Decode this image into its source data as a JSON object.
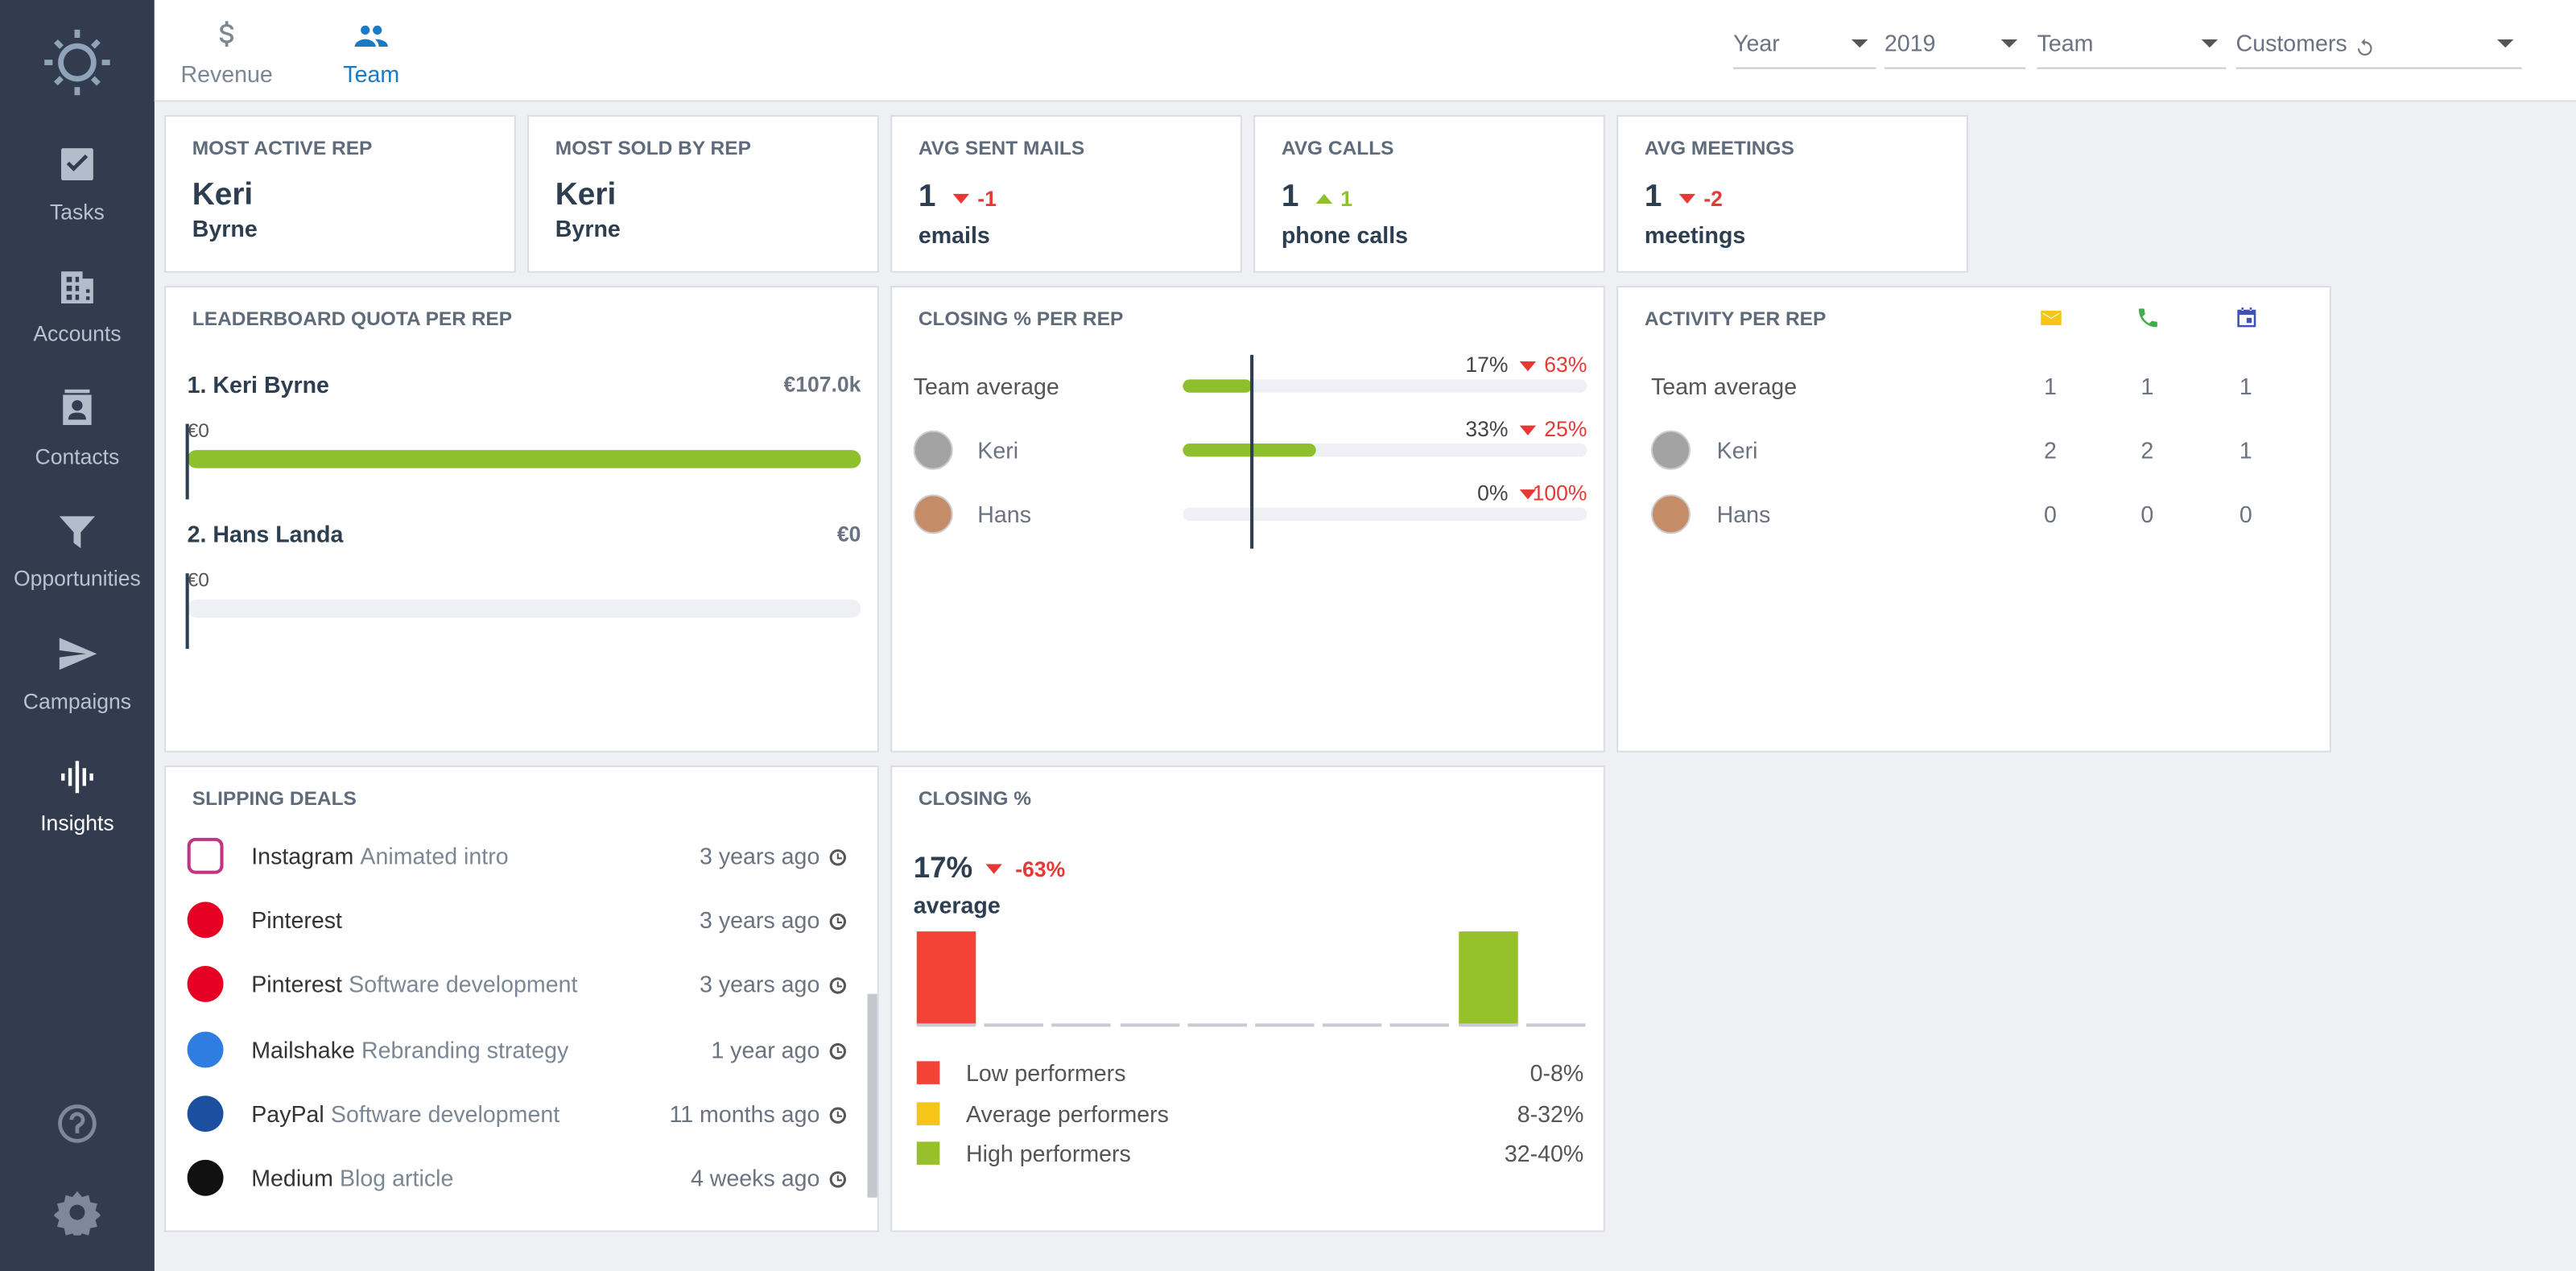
{
  "nav": {
    "items": [
      "Tasks",
      "Accounts",
      "Contacts",
      "Opportunities",
      "Campaigns",
      "Insights"
    ],
    "active": 5
  },
  "tabs": {
    "items": [
      "Revenue",
      "Team"
    ],
    "active": 1
  },
  "filters": [
    "Year",
    "2019",
    "Team",
    "Customers"
  ],
  "kpis": [
    {
      "title": "MOST ACTIVE REP",
      "name": "Keri",
      "sub": "Byrne"
    },
    {
      "title": "MOST SOLD BY REP",
      "name": "Keri",
      "sub": "Byrne"
    },
    {
      "title": "AVG SENT MAILS",
      "value": "1",
      "delta": "-1",
      "direction": "down",
      "unit": "emails"
    },
    {
      "title": "AVG CALLS",
      "value": "1",
      "delta": "1",
      "direction": "up",
      "unit": "phone calls"
    },
    {
      "title": "AVG MEETINGS",
      "value": "1",
      "delta": "-2",
      "direction": "down",
      "unit": "meetings"
    }
  ],
  "leaderboard": {
    "title": "LEADERBOARD QUOTA PER REP",
    "color": "#8dc02c",
    "rows": [
      {
        "name": "1. Keri Byrne",
        "amount": {
          "value": 107000,
          "label": "€107.0k"
        },
        "base": "€0"
      },
      {
        "name": "2. Hans Landa",
        "amount": {
          "value": 0,
          "label": "€0"
        },
        "base": "€0"
      }
    ]
  },
  "closing_per_rep": {
    "title": "CLOSING % PER REP",
    "color": "#8dc02c",
    "rows": [
      {
        "name": "Team average",
        "pct": {
          "value": 17,
          "label": "17%"
        },
        "delta": "63%",
        "direction": "down"
      },
      {
        "name": "Keri",
        "pct": {
          "value": 33,
          "label": "33%"
        },
        "delta": "25%",
        "direction": "down"
      },
      {
        "name": "Hans",
        "pct": {
          "value": 0,
          "label": "0%"
        },
        "delta": "100%",
        "direction": "down"
      }
    ]
  },
  "activity": {
    "title": "ACTIVITY PER REP",
    "rows": [
      {
        "name": "Team average",
        "mails": "1",
        "calls": "1",
        "meetings": "1"
      },
      {
        "name": "Keri",
        "mails": "2",
        "calls": "2",
        "meetings": "1"
      },
      {
        "name": "Hans",
        "mails": "0",
        "calls": "0",
        "meetings": "0"
      }
    ]
  },
  "slipping": {
    "title": "SLIPPING DEALS",
    "rows": [
      {
        "company": "Instagram",
        "deal": "Animated intro",
        "age": "3 years ago",
        "color": "#c13584"
      },
      {
        "company": "Pinterest",
        "age": "3 years ago",
        "color": "#e60023"
      },
      {
        "company": "Pinterest",
        "deal": "Software development",
        "age": "3 years ago",
        "color": "#e60023"
      },
      {
        "company": "Mailshake",
        "deal": "Rebranding strategy",
        "age": "1 year ago",
        "color": "#2f7de1"
      },
      {
        "company": "PayPal",
        "deal": "Software development",
        "age": "11 months ago",
        "color": "#1b4fa0"
      },
      {
        "company": "Medium",
        "deal": "Blog article",
        "age": "4 weeks ago",
        "color": "#111111"
      }
    ]
  },
  "closing": {
    "title": "CLOSING %",
    "value": "17%",
    "delta": "-63%",
    "direction": "down",
    "sub": "average",
    "counts": [
      1,
      0,
      0,
      0,
      0,
      0,
      0,
      0,
      1,
      0
    ],
    "bar_colors": [
      "#f44336",
      "#f44336",
      "#f5c518",
      "#f5c518",
      "#f5c518",
      "#f5c518",
      "#f5c518",
      "#f5c518",
      "#97c12a",
      "#97c12a"
    ],
    "legend": [
      {
        "name": "Low performers",
        "range": "0-8%",
        "color": "#f44336"
      },
      {
        "name": "Average performers",
        "range": "8-32%",
        "color": "#f5c518"
      },
      {
        "name": "High performers",
        "range": "32-40%",
        "color": "#97c12a"
      }
    ]
  }
}
